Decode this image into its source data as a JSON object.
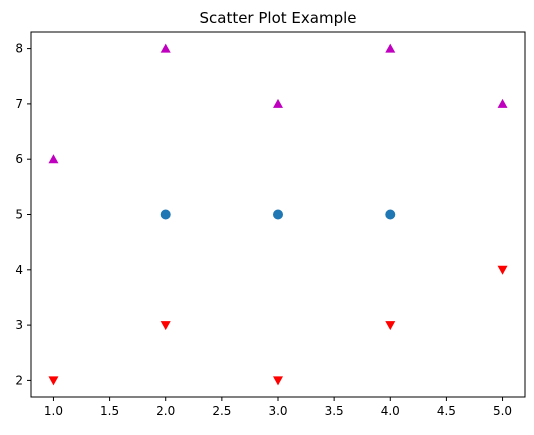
{
  "chart_data": {
    "type": "scatter",
    "title": "Scatter Plot Example",
    "xlabel": "",
    "ylabel": "",
    "xlim": [
      0.8,
      5.2
    ],
    "ylim": [
      1.7,
      8.3
    ],
    "xticks": [
      1.0,
      1.5,
      2.0,
      2.5,
      3.0,
      3.5,
      4.0,
      4.5,
      5.0
    ],
    "xtick_labels": [
      "1.0",
      "1.5",
      "2.0",
      "2.5",
      "3.0",
      "3.5",
      "4.0",
      "4.5",
      "5.0"
    ],
    "yticks": [
      2,
      3,
      4,
      5,
      6,
      7,
      8
    ],
    "ytick_labels": [
      "2",
      "3",
      "4",
      "5",
      "6",
      "7",
      "8"
    ],
    "grid": false,
    "series": [
      {
        "marker": "circle",
        "color": "#1f77b4",
        "points": [
          [
            2,
            5
          ],
          [
            3,
            5
          ],
          [
            4,
            5
          ]
        ]
      },
      {
        "marker": "triangle-up",
        "color": "#bf00bf",
        "points": [
          [
            1,
            6
          ],
          [
            2,
            8
          ],
          [
            3,
            7
          ],
          [
            4,
            8
          ],
          [
            5,
            7
          ]
        ]
      },
      {
        "marker": "triangle-down",
        "color": "#ff0000",
        "points": [
          [
            1,
            2
          ],
          [
            2,
            3
          ],
          [
            3,
            2
          ],
          [
            4,
            3
          ],
          [
            5,
            4
          ]
        ]
      }
    ]
  }
}
